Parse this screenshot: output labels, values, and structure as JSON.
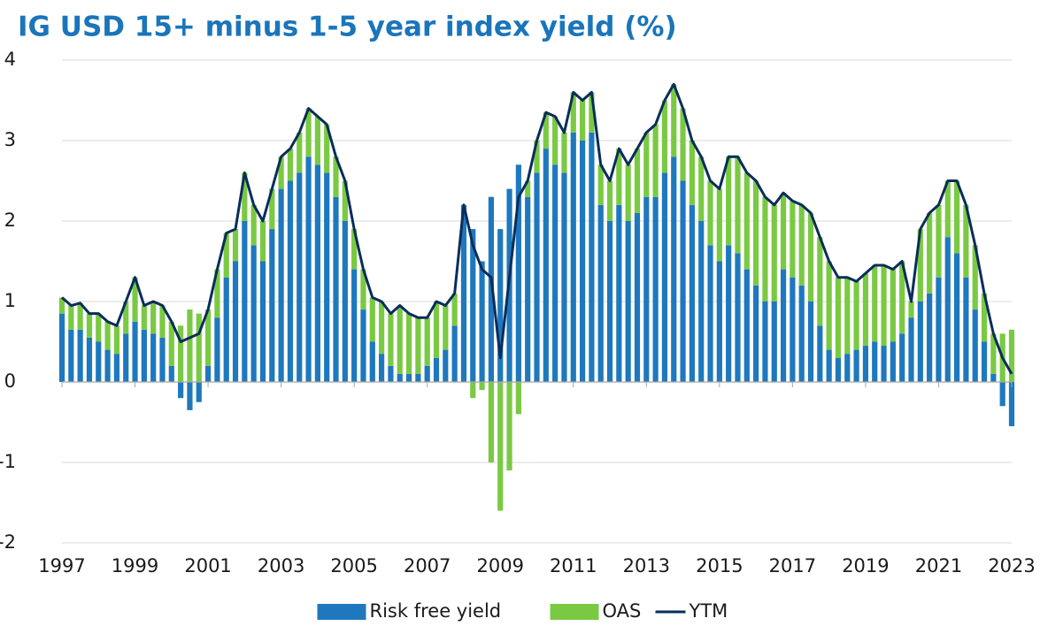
{
  "chart_data": {
    "type": "bar",
    "title": "IG USD 15+ minus 1-5 year index yield (%)",
    "x": [
      1997,
      1997.25,
      1997.5,
      1997.75,
      1998,
      1998.25,
      1998.5,
      1998.75,
      1999,
      1999.25,
      1999.5,
      1999.75,
      2000,
      2000.25,
      2000.5,
      2000.75,
      2001,
      2001.25,
      2001.5,
      2001.75,
      2002,
      2002.25,
      2002.5,
      2002.75,
      2003,
      2003.25,
      2003.5,
      2003.75,
      2004,
      2004.25,
      2004.5,
      2004.75,
      2005,
      2005.25,
      2005.5,
      2005.75,
      2006,
      2006.25,
      2006.5,
      2006.75,
      2007,
      2007.25,
      2007.5,
      2007.75,
      2008,
      2008.25,
      2008.5,
      2008.75,
      2009,
      2009.25,
      2009.5,
      2009.75,
      2010,
      2010.25,
      2010.5,
      2010.75,
      2011,
      2011.25,
      2011.5,
      2011.75,
      2012,
      2012.25,
      2012.5,
      2012.75,
      2013,
      2013.25,
      2013.5,
      2013.75,
      2014,
      2014.25,
      2014.5,
      2014.75,
      2015,
      2015.25,
      2015.5,
      2015.75,
      2016,
      2016.25,
      2016.5,
      2016.75,
      2017,
      2017.25,
      2017.5,
      2017.75,
      2018,
      2018.25,
      2018.5,
      2018.75,
      2019,
      2019.25,
      2019.5,
      2019.75,
      2020,
      2020.25,
      2020.5,
      2020.75,
      2021,
      2021.25,
      2021.5,
      2021.75,
      2022,
      2022.25,
      2022.5,
      2022.75,
      2023
    ],
    "series": [
      {
        "name": "Risk free yield",
        "color": "#1e78be",
        "values": [
          0.85,
          0.65,
          0.65,
          0.55,
          0.5,
          0.4,
          0.35,
          0.6,
          0.75,
          0.65,
          0.6,
          0.55,
          0.2,
          -0.2,
          -0.35,
          -0.25,
          0.2,
          0.8,
          1.3,
          1.5,
          2.0,
          1.7,
          1.5,
          1.9,
          2.4,
          2.5,
          2.6,
          2.8,
          2.7,
          2.6,
          2.3,
          2.0,
          1.4,
          0.9,
          0.5,
          0.35,
          0.2,
          0.1,
          0.1,
          0.1,
          0.2,
          0.3,
          0.4,
          0.7,
          2.2,
          1.9,
          1.5,
          2.3,
          1.9,
          2.4,
          2.7,
          2.3,
          2.6,
          2.9,
          2.7,
          2.6,
          3.1,
          3.0,
          3.1,
          2.2,
          2.0,
          2.2,
          2.0,
          2.1,
          2.3,
          2.3,
          2.6,
          2.8,
          2.5,
          2.2,
          2.0,
          1.7,
          1.5,
          1.7,
          1.6,
          1.4,
          1.2,
          1.0,
          1.0,
          1.4,
          1.3,
          1.2,
          1.0,
          0.7,
          0.4,
          0.3,
          0.35,
          0.4,
          0.45,
          0.5,
          0.45,
          0.5,
          0.6,
          0.8,
          1.0,
          1.1,
          1.3,
          1.8,
          1.6,
          1.3,
          0.9,
          0.5,
          0.1,
          -0.3,
          -0.55
        ]
      },
      {
        "name": "OAS",
        "color": "#7ac943",
        "values": [
          0.2,
          0.3,
          0.33,
          0.3,
          0.35,
          0.35,
          0.35,
          0.4,
          0.55,
          0.3,
          0.4,
          0.4,
          0.55,
          0.7,
          0.9,
          0.85,
          0.7,
          0.6,
          0.55,
          0.4,
          0.6,
          0.5,
          0.5,
          0.5,
          0.4,
          0.4,
          0.5,
          0.6,
          0.6,
          0.6,
          0.5,
          0.5,
          0.5,
          0.5,
          0.55,
          0.65,
          0.65,
          0.85,
          0.75,
          0.7,
          0.6,
          0.7,
          0.55,
          0.4,
          0,
          -0.2,
          -0.1,
          -1.0,
          -1.6,
          -1.1,
          -0.4,
          0.2,
          0.4,
          0.45,
          0.6,
          0.5,
          0.5,
          0.5,
          0.5,
          0.5,
          0.5,
          0.7,
          0.7,
          0.8,
          0.8,
          0.9,
          0.9,
          0.9,
          0.9,
          0.8,
          0.8,
          0.8,
          0.9,
          1.1,
          1.2,
          1.2,
          1.3,
          1.3,
          1.2,
          0.95,
          0.95,
          1.0,
          1.1,
          1.1,
          1.1,
          1.0,
          0.95,
          0.85,
          0.9,
          0.95,
          1.0,
          0.9,
          0.9,
          0.2,
          0.9,
          1.0,
          0.9,
          0.7,
          0.9,
          0.9,
          0.8,
          0.6,
          0.5,
          0.6,
          0.65
        ]
      },
      {
        "name": "YTM",
        "color": "#0a2d5a",
        "type": "line",
        "values": [
          1.05,
          0.95,
          0.98,
          0.85,
          0.85,
          0.75,
          0.7,
          1.0,
          1.3,
          0.95,
          1.0,
          0.95,
          0.75,
          0.5,
          0.55,
          0.6,
          0.9,
          1.4,
          1.85,
          1.9,
          2.6,
          2.2,
          2.0,
          2.4,
          2.8,
          2.9,
          3.1,
          3.4,
          3.3,
          3.2,
          2.8,
          2.5,
          1.9,
          1.4,
          1.05,
          1.0,
          0.85,
          0.95,
          0.85,
          0.8,
          0.8,
          1.0,
          0.95,
          1.1,
          2.2,
          1.7,
          1.4,
          1.3,
          0.3,
          1.3,
          2.3,
          2.5,
          3.0,
          3.35,
          3.3,
          3.1,
          3.6,
          3.5,
          3.6,
          2.7,
          2.5,
          2.9,
          2.7,
          2.9,
          3.1,
          3.2,
          3.5,
          3.7,
          3.4,
          3.0,
          2.8,
          2.5,
          2.4,
          2.8,
          2.8,
          2.6,
          2.5,
          2.3,
          2.2,
          2.35,
          2.25,
          2.2,
          2.1,
          1.8,
          1.5,
          1.3,
          1.3,
          1.25,
          1.35,
          1.45,
          1.45,
          1.4,
          1.5,
          1.0,
          1.9,
          2.1,
          2.2,
          2.5,
          2.5,
          2.2,
          1.7,
          1.1,
          0.6,
          0.3,
          0.1
        ]
      }
    ],
    "xlim": [
      1997,
      2023
    ],
    "xticks": [
      1997,
      1999,
      2001,
      2003,
      2005,
      2007,
      2009,
      2011,
      2013,
      2015,
      2017,
      2019,
      2021,
      2023
    ],
    "ylim": [
      -2,
      4
    ],
    "yticks": [
      -2,
      -1,
      0,
      1,
      2,
      3,
      4
    ],
    "grid": true,
    "legend": "bottom"
  }
}
